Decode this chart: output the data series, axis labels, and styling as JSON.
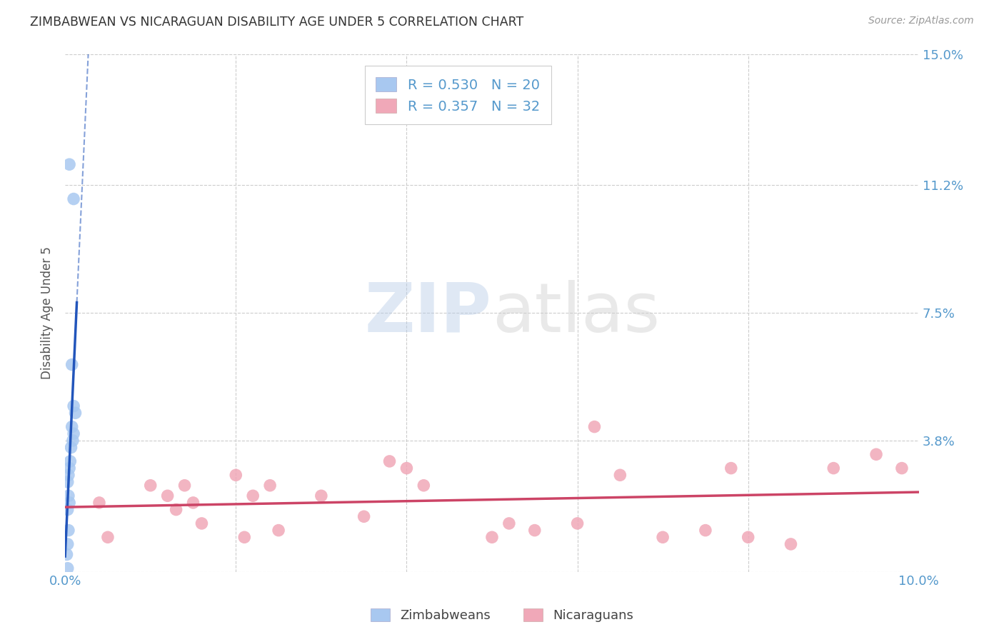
{
  "title": "ZIMBABWEAN VS NICARAGUAN DISABILITY AGE UNDER 5 CORRELATION CHART",
  "source": "Source: ZipAtlas.com",
  "ylabel": "Disability Age Under 5",
  "xlim": [
    0.0,
    0.1
  ],
  "ylim": [
    0.0,
    0.15
  ],
  "xticks": [
    0.0,
    0.02,
    0.04,
    0.06,
    0.08,
    0.1
  ],
  "xticklabels": [
    "0.0%",
    "",
    "",
    "",
    "",
    "10.0%"
  ],
  "ytick_positions": [
    0.0,
    0.038,
    0.075,
    0.112,
    0.15
  ],
  "yticklabels_right": [
    "",
    "3.8%",
    "7.5%",
    "11.2%",
    "15.0%"
  ],
  "zimbabwean_x": [
    0.0005,
    0.001,
    0.0008,
    0.001,
    0.0012,
    0.0008,
    0.001,
    0.0009,
    0.0007,
    0.0006,
    0.0005,
    0.0004,
    0.0003,
    0.0004,
    0.0005,
    0.0003,
    0.0004,
    0.0003,
    0.0002,
    0.0003
  ],
  "zimbabwean_y": [
    0.118,
    0.108,
    0.06,
    0.048,
    0.046,
    0.042,
    0.04,
    0.038,
    0.036,
    0.032,
    0.03,
    0.028,
    0.026,
    0.022,
    0.02,
    0.018,
    0.012,
    0.008,
    0.005,
    0.001
  ],
  "nicaraguan_x": [
    0.004,
    0.005,
    0.01,
    0.012,
    0.013,
    0.014,
    0.015,
    0.016,
    0.02,
    0.021,
    0.022,
    0.024,
    0.025,
    0.03,
    0.035,
    0.038,
    0.04,
    0.042,
    0.05,
    0.052,
    0.055,
    0.06,
    0.062,
    0.065,
    0.07,
    0.075,
    0.078,
    0.08,
    0.085,
    0.09,
    0.095,
    0.098
  ],
  "nicaraguan_y": [
    0.02,
    0.01,
    0.025,
    0.022,
    0.018,
    0.025,
    0.02,
    0.014,
    0.028,
    0.01,
    0.022,
    0.025,
    0.012,
    0.022,
    0.016,
    0.032,
    0.03,
    0.025,
    0.01,
    0.014,
    0.012,
    0.014,
    0.042,
    0.028,
    0.01,
    0.012,
    0.03,
    0.01,
    0.008,
    0.03,
    0.034,
    0.03
  ],
  "zimbabwean_color": "#a8c8f0",
  "nicaraguan_color": "#f0a8b8",
  "zimbabwean_line_color": "#2255bb",
  "nicaraguan_line_color": "#cc4466",
  "grid_color": "#cccccc",
  "background_color": "#ffffff",
  "legend_r_zim": "R = 0.530",
  "legend_n_zim": "N = 20",
  "legend_r_nic": "R = 0.357",
  "legend_n_nic": "N = 32",
  "tick_color": "#5599cc"
}
